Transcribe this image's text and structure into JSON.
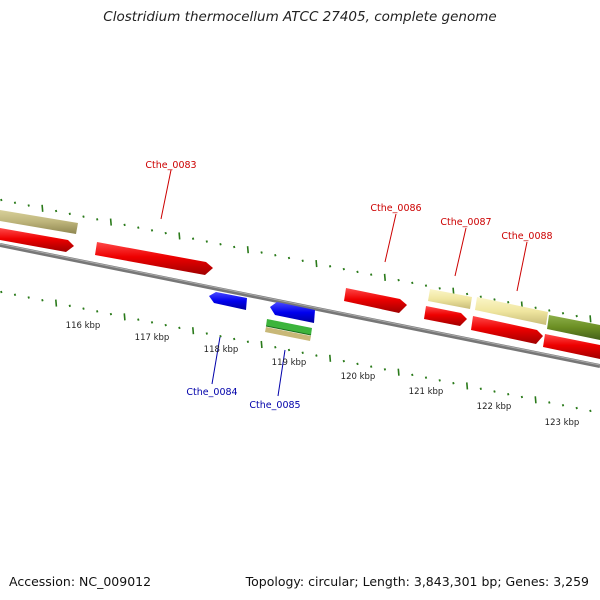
{
  "title": "Clostridium thermocellum ATCC 27405, complete genome",
  "footer": {
    "accession": "Accession: NC_009012",
    "summary": "Topology: circular; Length: 3,843,301 bp; Genes: 3,259"
  },
  "colors": {
    "gene_label_forward": "#cc0000",
    "gene_label_reverse": "#0000aa",
    "tick": "#2a7a1a",
    "backbone": "#777777"
  },
  "gene_labels": [
    {
      "id": "Cthe_0083",
      "strand": "forward"
    },
    {
      "id": "Cthe_0084",
      "strand": "reverse"
    },
    {
      "id": "Cthe_0085",
      "strand": "reverse"
    },
    {
      "id": "Cthe_0086",
      "strand": "forward"
    },
    {
      "id": "Cthe_0087",
      "strand": "forward"
    },
    {
      "id": "Cthe_0088",
      "strand": "forward"
    }
  ],
  "kbp_labels": [
    "116 kbp",
    "117 kbp",
    "118 kbp",
    "119 kbp",
    "120 kbp",
    "121 kbp",
    "122 kbp",
    "123 kbp"
  ]
}
